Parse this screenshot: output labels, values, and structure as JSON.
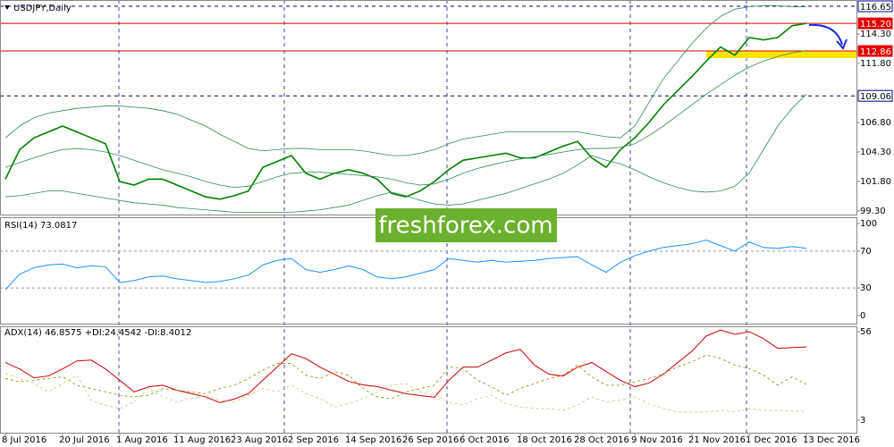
{
  "watermark": "freshforex.com",
  "chart_data": [
    {
      "type": "line",
      "title": "USDJPY,Daily",
      "categories": [
        "8 Jul 2016",
        null,
        null,
        null,
        "20 Jul 2016",
        null,
        null,
        null,
        "1 Aug 2016",
        null,
        null,
        null,
        "11 Aug 2016",
        null,
        null,
        null,
        "23 Aug 2016",
        null,
        null,
        null,
        "2 Sep 2016",
        null,
        null,
        null,
        "14 Sep 2016",
        null,
        null,
        null,
        "26 Sep 2016",
        null,
        null,
        null,
        "6 Oct 2016",
        null,
        null,
        null,
        "18 Oct 2016",
        null,
        null,
        null,
        "28 Oct 2016",
        null,
        null,
        null,
        "9 Nov 2016",
        null,
        null,
        null,
        "21 Nov 2016",
        null,
        null,
        null,
        "1 Dec 2016",
        null,
        null,
        null,
        "13 Dec 2016"
      ],
      "series": [
        {
          "name": "USDJPY",
          "color": "#008000",
          "width": 1.6,
          "values": [
            102,
            104.5,
            105.5,
            106,
            106.5,
            106,
            105.5,
            105,
            101.8,
            101.5,
            102,
            102,
            101.5,
            101,
            100.5,
            100.3,
            100.6,
            101,
            103,
            103.5,
            104,
            102.5,
            102,
            102.5,
            102.8,
            102.5,
            102,
            100.8,
            100.5,
            101,
            101.8,
            102.8,
            103.6,
            103.8,
            104,
            104.2,
            103.8,
            103.8,
            104.3,
            104.8,
            105.2,
            103.8,
            103,
            104.5,
            105.5,
            106.8,
            108.3,
            109.5,
            110.7,
            112,
            113.2,
            112.5,
            114,
            113.8,
            114,
            115,
            115.2
          ]
        },
        {
          "name": "BB upper",
          "color": "#2e8b57",
          "width": 0.8,
          "values": [
            105.5,
            106.5,
            107.2,
            107.6,
            107.8,
            108,
            108.1,
            108.2,
            108.2,
            108.1,
            108,
            107.8,
            107.5,
            107,
            106.5,
            105.8,
            105.2,
            104.6,
            104.4,
            104.5,
            104.6,
            104.6,
            104.5,
            104.5,
            104.5,
            104.4,
            104.2,
            104,
            104,
            104.2,
            104.5,
            105,
            105.4,
            105.6,
            105.8,
            106,
            106,
            106,
            106,
            106,
            106,
            105.8,
            105.6,
            105.5,
            106.5,
            108.5,
            110.5,
            112,
            113.5,
            114.8,
            115.8,
            116.4,
            116.6,
            116.7,
            116.7,
            116.6,
            116.6
          ]
        },
        {
          "name": "BB middle",
          "color": "#2e8b57",
          "width": 0.8,
          "values": [
            103,
            103.4,
            103.8,
            104.2,
            104.5,
            104.6,
            104.5,
            104.3,
            104,
            103.6,
            103.2,
            102.8,
            102.5,
            102.2,
            101.8,
            101.5,
            101.3,
            101.4,
            101.8,
            102.2,
            102.5,
            102.6,
            102.6,
            102.5,
            102.4,
            102.3,
            102.2,
            102,
            101.7,
            101.5,
            101.6,
            102,
            102.5,
            102.9,
            103.2,
            103.5,
            103.7,
            103.9,
            104.1,
            104.3,
            104.5,
            104.6,
            104.6,
            104.7,
            105,
            105.7,
            106.5,
            107.4,
            108.3,
            109.2,
            110,
            110.8,
            111.5,
            112,
            112.4,
            112.7,
            112.9
          ]
        },
        {
          "name": "BB lower",
          "color": "#2e8b57",
          "width": 0.8,
          "values": [
            100.5,
            100.6,
            100.8,
            101,
            101,
            100.8,
            100.6,
            100.4,
            100.2,
            100,
            99.9,
            99.8,
            99.6,
            99.5,
            99.4,
            99.3,
            99.2,
            99.2,
            99.2,
            99.2,
            99.2,
            99.3,
            99.4,
            99.6,
            99.8,
            100.2,
            100.6,
            100.9,
            100.6,
            100.2,
            99.9,
            99.8,
            99.9,
            100.2,
            100.5,
            100.8,
            101.2,
            101.6,
            102,
            102.5,
            103.2,
            104,
            103.6,
            103.3,
            102.8,
            102.2,
            101.7,
            101.3,
            101,
            100.9,
            101,
            101.4,
            102.5,
            104.5,
            106.5,
            108,
            109.2
          ]
        }
      ],
      "ylim": [
        99.0,
        117.18
      ],
      "yticks": [
        {
          "value": 114.3,
          "label": "114.30"
        },
        {
          "value": 111.8,
          "label": "111.80"
        },
        {
          "value": 106.8,
          "label": "106.80"
        },
        {
          "value": 104.3,
          "label": "104.30"
        },
        {
          "value": 101.8,
          "label": "101.80"
        },
        {
          "value": 99.3,
          "label": "99.30"
        }
      ],
      "levels": [
        {
          "value": 116.65,
          "color": "#00008b",
          "style": "dashed"
        },
        {
          "value": 115.2,
          "label": "115.20",
          "color": "#e00000",
          "style": "solid"
        },
        {
          "value": 112.86,
          "color": "#e00000",
          "style": "solid"
        },
        {
          "value": 109.06,
          "color": "#00008b",
          "style": "dashed"
        }
      ]
    },
    {
      "type": "line",
      "title": "RSI(14) 73.0817",
      "series": [
        {
          "name": "RSI",
          "color": "#1e90ff",
          "width": 1,
          "values": [
            28,
            45,
            52,
            55,
            56,
            52,
            54,
            53,
            36,
            38,
            42,
            43,
            40,
            38,
            36,
            37,
            40,
            44,
            55,
            60,
            62,
            50,
            47,
            50,
            54,
            50,
            42,
            40,
            42,
            46,
            50,
            62,
            60,
            58,
            60,
            58,
            59,
            60,
            62,
            63,
            64,
            55,
            47,
            58,
            65,
            70,
            74,
            76,
            78,
            82,
            76,
            70,
            80,
            74,
            73,
            75,
            73.08
          ]
        }
      ],
      "ylim": [
        -8.7,
        106.8
      ],
      "yticks": [
        100,
        70,
        30,
        0
      ],
      "grid_ticks": [
        70,
        30
      ]
    },
    {
      "type": "line",
      "title": "ADX(14) 46.8575 +DI:24.4542 -DI:8.4012",
      "series": [
        {
          "name": "ADX",
          "color": "#cc0000",
          "width": 1,
          "values": [
            37.5,
            33.7,
            28.4,
            29.5,
            33.7,
            38.5,
            39,
            33.7,
            26.9,
            20,
            23,
            24,
            21,
            19,
            17,
            13.6,
            15.7,
            19,
            27,
            34.8,
            42.8,
            40,
            34.8,
            30.6,
            26.3,
            24.2,
            23.1,
            21,
            19,
            17.8,
            16.8,
            26.9,
            34.8,
            34.8,
            39,
            43.3,
            45.4,
            35.9,
            30.6,
            29.5,
            34.8,
            37.5,
            32.2,
            26.9,
            23.1,
            25.3,
            30.6,
            37.5,
            44.3,
            53.4,
            57,
            54.4,
            56,
            51.8,
            46,
            46.5,
            46.86
          ]
        },
        {
          "name": "+DI",
          "color": "#8b8b00",
          "width": 0.8,
          "dash": true,
          "values": [
            28,
            26,
            27,
            28,
            29,
            24,
            22,
            20,
            18,
            17,
            18,
            22,
            21,
            20,
            19,
            22,
            24,
            28,
            33,
            37,
            37,
            30,
            28,
            32,
            30,
            22,
            17,
            16,
            20,
            22,
            24,
            35,
            34,
            27,
            23,
            18,
            22,
            25,
            28,
            30,
            36,
            29,
            24,
            24,
            26,
            28,
            31,
            35,
            38,
            42,
            40,
            36,
            34,
            30,
            24,
            29,
            24.45
          ]
        },
        {
          "name": "-DI",
          "color": "#c8c878",
          "width": 0.8,
          "dash": true,
          "values": [
            31,
            28,
            25,
            20,
            25,
            30,
            15,
            12,
            10,
            14,
            22,
            17,
            14,
            16,
            18,
            15,
            14,
            18,
            22,
            20,
            24,
            19,
            16,
            11,
            13,
            16,
            20,
            24,
            25,
            20,
            18,
            14,
            12,
            16,
            18,
            13,
            11,
            10,
            10,
            9,
            12,
            17,
            14,
            15,
            17,
            13,
            10,
            8,
            8,
            8,
            9,
            8,
            10,
            9,
            9,
            8.5,
            8.4
          ]
        }
      ],
      "ylim": [
        -4.4,
        59.2
      ],
      "yticks": [
        56,
        3
      ]
    }
  ]
}
